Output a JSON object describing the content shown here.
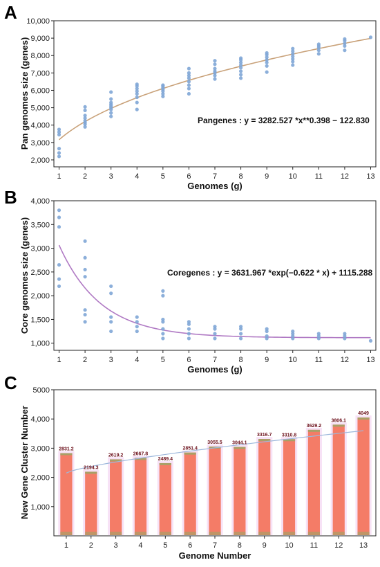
{
  "chart_data": [
    {
      "panel": "A",
      "type": "scatter",
      "xlabel": "Genomes (g)",
      "ylabel": "Pan genomes size (genes)",
      "xlim": [
        0.8,
        13.2
      ],
      "ylim": [
        1600,
        10000
      ],
      "x_ticks": [
        "1",
        "2",
        "3",
        "4",
        "5",
        "6",
        "7",
        "8",
        "9",
        "10",
        "11",
        "12",
        "13"
      ],
      "y_ticks": [
        2000,
        3000,
        4000,
        5000,
        6000,
        7000,
        8000,
        9000,
        10000
      ],
      "y_tick_labels": [
        "2,000",
        "3,000",
        "4,000",
        "5,000",
        "6,000",
        "7,000",
        "8,000",
        "9,000",
        "10,000"
      ],
      "annotation": "Pangenes : y = 3282.527 *x**0.398 − 122.830",
      "fit": {
        "model": "power",
        "a": 3282.527,
        "b": 0.398,
        "c": -122.83
      },
      "grid": false,
      "colors": {
        "points": "#7fa6d6",
        "fit": "#c9a27a"
      },
      "points": [
        {
          "x": 1,
          "y": [
            2200,
            2400,
            2650,
            3450,
            3600,
            3750
          ]
        },
        {
          "x": 2,
          "y": [
            3900,
            4050,
            4150,
            4250,
            4400,
            4550,
            4850,
            5050
          ]
        },
        {
          "x": 3,
          "y": [
            4500,
            4700,
            4900,
            5000,
            5100,
            5200,
            5300,
            5500,
            5900
          ]
        },
        {
          "x": 4,
          "y": [
            4900,
            5300,
            5600,
            5800,
            5950,
            6100,
            6250,
            6350
          ]
        },
        {
          "x": 5,
          "y": [
            5650,
            5800,
            5950,
            6050,
            6150,
            6250,
            6300
          ]
        },
        {
          "x": 6,
          "y": [
            5800,
            6100,
            6300,
            6500,
            6700,
            6850,
            7000,
            7250
          ]
        },
        {
          "x": 7,
          "y": [
            6650,
            6850,
            7000,
            7100,
            7250,
            7500,
            7700
          ]
        },
        {
          "x": 8,
          "y": [
            6700,
            6900,
            7100,
            7300,
            7450,
            7600,
            7750,
            7850
          ]
        },
        {
          "x": 9,
          "y": [
            7050,
            7400,
            7600,
            7750,
            7900,
            8050,
            8150
          ]
        },
        {
          "x": 10,
          "y": [
            7450,
            7650,
            7800,
            7950,
            8100,
            8250,
            8400
          ]
        },
        {
          "x": 11,
          "y": [
            8100,
            8300,
            8450,
            8550,
            8650
          ]
        },
        {
          "x": 12,
          "y": [
            8300,
            8550,
            8700,
            8850,
            8950
          ]
        },
        {
          "x": 13,
          "y": [
            9050
          ]
        }
      ]
    },
    {
      "panel": "B",
      "type": "scatter",
      "xlabel": "Genomes (g)",
      "ylabel": "Core genomes size (genes)",
      "xlim": [
        0.8,
        13.2
      ],
      "ylim": [
        850,
        4000
      ],
      "x_ticks": [
        "1",
        "2",
        "3",
        "4",
        "5",
        "6",
        "7",
        "8",
        "9",
        "10",
        "11",
        "12",
        "13"
      ],
      "y_ticks": [
        1000,
        1500,
        2000,
        2500,
        3000,
        3500,
        4000
      ],
      "y_tick_labels": [
        "1,000",
        "1,500",
        "2,000",
        "2,500",
        "3,000",
        "3,500",
        "4,000"
      ],
      "annotation": "Coregenes : y = 3631.967 *exp(−0.622 * x) + 1115.288",
      "fit": {
        "model": "exponential",
        "a": 3631.967,
        "b": -0.622,
        "c": 1115.288
      },
      "grid": false,
      "colors": {
        "points": "#7fa6d6",
        "fit": "#b07ac4"
      },
      "points": [
        {
          "x": 1,
          "y": [
            2200,
            2350,
            2650,
            3450,
            3650,
            3800
          ]
        },
        {
          "x": 2,
          "y": [
            1450,
            1600,
            1700,
            2400,
            2550,
            2800,
            3150
          ]
        },
        {
          "x": 3,
          "y": [
            1250,
            1450,
            1550,
            2050,
            2200
          ]
        },
        {
          "x": 4,
          "y": [
            1250,
            1350,
            1450,
            1550
          ]
        },
        {
          "x": 5,
          "y": [
            1100,
            1200,
            1300,
            1450,
            1500,
            2000,
            2100
          ]
        },
        {
          "x": 6,
          "y": [
            1100,
            1200,
            1300,
            1400,
            1450
          ]
        },
        {
          "x": 7,
          "y": [
            1100,
            1200,
            1300,
            1350
          ]
        },
        {
          "x": 8,
          "y": [
            1100,
            1200,
            1300,
            1350
          ]
        },
        {
          "x": 9,
          "y": [
            1100,
            1150,
            1250,
            1300
          ]
        },
        {
          "x": 10,
          "y": [
            1100,
            1150,
            1200,
            1250
          ]
        },
        {
          "x": 11,
          "y": [
            1100,
            1150,
            1200
          ]
        },
        {
          "x": 12,
          "y": [
            1100,
            1150,
            1200
          ]
        },
        {
          "x": 13,
          "y": [
            1050
          ]
        }
      ]
    },
    {
      "panel": "C",
      "type": "bar",
      "xlabel": "Genome Number",
      "ylabel": "New Gene Cluster Number",
      "categories": [
        "1",
        "2",
        "3",
        "4",
        "5",
        "6",
        "7",
        "8",
        "9",
        "10",
        "11",
        "12",
        "13"
      ],
      "values": [
        2831.2,
        2194.3,
        2619.2,
        2667.8,
        2489.4,
        2851.4,
        3055.5,
        3044.1,
        3316.7,
        3310.8,
        3629.2,
        3806.1,
        4049
      ],
      "value_labels": [
        "2831.2",
        "2194.3",
        "2619.2",
        "2667.8",
        "2489.4",
        "2851.4",
        "3055.5",
        "3044.1",
        "3316.7",
        "3310.8",
        "3629.2",
        "3806.1",
        "4049"
      ],
      "ylim": [
        0,
        5000
      ],
      "y_ticks": [
        1000,
        2000,
        3000,
        4000,
        5000
      ],
      "y_tick_labels": [
        "1,000",
        "2,000",
        "3,000",
        "4,000",
        "5000"
      ],
      "trend": [
        2150,
        3600
      ],
      "grid": false,
      "colors": {
        "bar": "#f47c67",
        "bar_cap": "#a9a067",
        "halo": "#f3d6f2",
        "trend": "#9db8dc",
        "label": "#6b0f1a"
      }
    }
  ]
}
